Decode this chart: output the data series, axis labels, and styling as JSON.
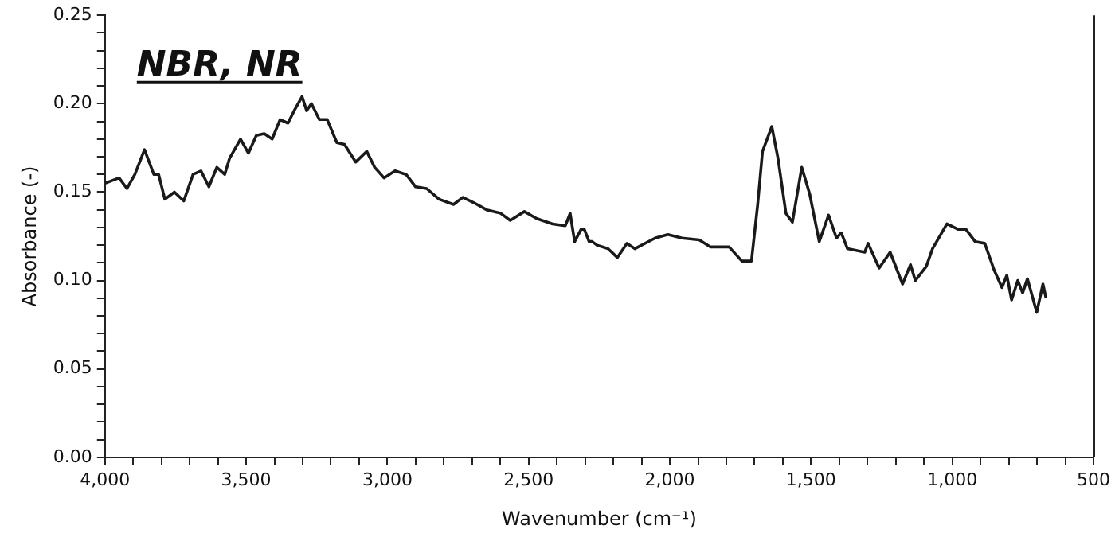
{
  "chart_data": {
    "type": "line",
    "title": "NBR, NR",
    "xlabel": "Wavenumber (cm⁻¹)",
    "ylabel": "Absorbance (-)",
    "marker": "none",
    "line_style": "solid",
    "xlim": [
      4000,
      500
    ],
    "ylim": [
      0,
      0.25
    ],
    "xticks": [
      {
        "value": 4000,
        "label": "4,000"
      },
      {
        "value": 3900,
        "label": null
      },
      {
        "value": 3800,
        "label": null
      },
      {
        "value": 3700,
        "label": null
      },
      {
        "value": 3600,
        "label": null
      },
      {
        "value": 3500,
        "label": "3,500"
      },
      {
        "value": 3400,
        "label": null
      },
      {
        "value": 3300,
        "label": null
      },
      {
        "value": 3200,
        "label": null
      },
      {
        "value": 3100,
        "label": null
      },
      {
        "value": 3000,
        "label": "3,000"
      },
      {
        "value": 2900,
        "label": null
      },
      {
        "value": 2800,
        "label": null
      },
      {
        "value": 2700,
        "label": null
      },
      {
        "value": 2600,
        "label": null
      },
      {
        "value": 2500,
        "label": "2,500"
      },
      {
        "value": 2400,
        "label": null
      },
      {
        "value": 2300,
        "label": null
      },
      {
        "value": 2200,
        "label": null
      },
      {
        "value": 2100,
        "label": null
      },
      {
        "value": 2000,
        "label": "2,000"
      },
      {
        "value": 1900,
        "label": null
      },
      {
        "value": 1800,
        "label": null
      },
      {
        "value": 1700,
        "label": null
      },
      {
        "value": 1600,
        "label": null
      },
      {
        "value": 1500,
        "label": "1,500"
      },
      {
        "value": 1400,
        "label": null
      },
      {
        "value": 1300,
        "label": null
      },
      {
        "value": 1200,
        "label": null
      },
      {
        "value": 1100,
        "label": null
      },
      {
        "value": 1000,
        "label": "1,000"
      },
      {
        "value": 900,
        "label": null
      },
      {
        "value": 800,
        "label": null
      },
      {
        "value": 700,
        "label": null
      },
      {
        "value": 600,
        "label": null
      },
      500
    ],
    "yticks": [
      {
        "value": 0,
        "label": "0.00"
      },
      {
        "value": 0.01,
        "label": null
      },
      {
        "value": 0.02,
        "label": null
      },
      {
        "value": 0.03,
        "label": null
      },
      {
        "value": 0.04,
        "label": null
      },
      {
        "value": 0.05,
        "label": "0.05"
      },
      {
        "value": 0.06,
        "label": null
      },
      {
        "value": 0.07,
        "label": null
      },
      {
        "value": 0.08,
        "label": null
      },
      {
        "value": 0.09,
        "label": null
      },
      {
        "value": 0.1,
        "label": "0.10"
      },
      {
        "value": 0.11,
        "label": null
      },
      {
        "value": 0.12,
        "label": null
      },
      {
        "value": 0.13,
        "label": null
      },
      {
        "value": 0.14,
        "label": null
      },
      {
        "value": 0.15,
        "label": "0.15"
      },
      {
        "value": 0.16,
        "label": null
      },
      {
        "value": 0.17,
        "label": null
      },
      {
        "value": 0.18,
        "label": null
      },
      {
        "value": 0.19,
        "label": null
      },
      {
        "value": 0.2,
        "label": "0.20"
      },
      {
        "value": 0.21,
        "label": null
      },
      {
        "value": 0.22,
        "label": null
      },
      {
        "value": 0.23,
        "label": null
      },
      {
        "value": 0.24,
        "label": null
      },
      {
        "value": 0.25,
        "label": "0.25"
      }
    ],
    "x": [
      4000,
      3950,
      3922,
      3894,
      3860,
      3827,
      3810,
      3788,
      3754,
      3721,
      3688,
      3660,
      3632,
      3604,
      3576,
      3559,
      3520,
      3492,
      3464,
      3436,
      3408,
      3380,
      3352,
      3330,
      3302,
      3286,
      3269,
      3241,
      3213,
      3179,
      3152,
      3112,
      3073,
      3045,
      3012,
      2973,
      2934,
      2900,
      2861,
      2817,
      2766,
      2733,
      2694,
      2649,
      2599,
      2565,
      2515,
      2471,
      2415,
      2370,
      2353,
      2337,
      2314,
      2303,
      2286,
      2275,
      2258,
      2219,
      2186,
      2152,
      2124,
      2052,
      2007,
      1957,
      1896,
      1857,
      1790,
      1745,
      1711,
      1689,
      1672,
      1639,
      1617,
      1589,
      1566,
      1533,
      1505,
      1471,
      1438,
      1410,
      1393,
      1371,
      1310,
      1298,
      1259,
      1220,
      1176,
      1148,
      1131,
      1092,
      1070,
      1019,
      980,
      952,
      919,
      885,
      852,
      824,
      807,
      790,
      768,
      751,
      734,
      701,
      679,
      668
    ],
    "series": [
      {
        "color": "#1a1a1a",
        "values": [
          0.155,
          0.158,
          0.152,
          0.16,
          0.174,
          0.16,
          0.16,
          0.146,
          0.15,
          0.145,
          0.16,
          0.162,
          0.153,
          0.164,
          0.16,
          0.169,
          0.18,
          0.172,
          0.182,
          0.183,
          0.18,
          0.191,
          0.189,
          0.196,
          0.204,
          0.196,
          0.2,
          0.191,
          0.191,
          0.178,
          0.177,
          0.167,
          0.173,
          0.164,
          0.158,
          0.162,
          0.16,
          0.153,
          0.152,
          0.146,
          0.143,
          0.147,
          0.144,
          0.14,
          0.138,
          0.134,
          0.139,
          0.135,
          0.132,
          0.131,
          0.138,
          0.122,
          0.129,
          0.129,
          0.122,
          0.122,
          0.12,
          0.118,
          0.113,
          0.121,
          0.118,
          0.124,
          0.126,
          0.124,
          0.123,
          0.119,
          0.119,
          0.111,
          0.111,
          0.143,
          0.173,
          0.187,
          0.169,
          0.138,
          0.133,
          0.164,
          0.149,
          0.122,
          0.137,
          0.124,
          0.127,
          0.118,
          0.116,
          0.121,
          0.107,
          0.116,
          0.098,
          0.109,
          0.1,
          0.108,
          0.118,
          0.132,
          0.129,
          0.129,
          0.122,
          0.121,
          0.106,
          0.096,
          0.103,
          0.089,
          0.1,
          0.093,
          0.101,
          0.082,
          0.098,
          0.09
        ]
      }
    ]
  }
}
